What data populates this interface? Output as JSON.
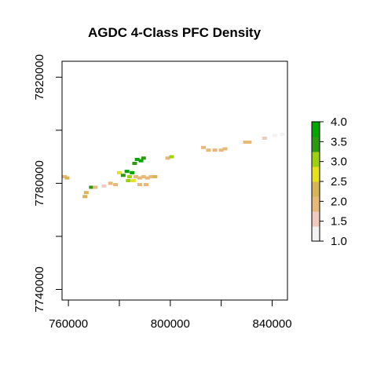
{
  "chart_data": {
    "type": "heatmap",
    "title": "AGDC 4-Class PFC Density",
    "xlabel": "",
    "ylabel": "",
    "xlim": [
      757500,
      846000
    ],
    "ylim": [
      7736000,
      7826000
    ],
    "x_ticks": [
      {
        "value": 760000,
        "label": "760000"
      },
      {
        "value": 780000,
        "label": ""
      },
      {
        "value": 800000,
        "label": "800000"
      },
      {
        "value": 820000,
        "label": ""
      },
      {
        "value": 840000,
        "label": "840000"
      }
    ],
    "y_ticks": [
      {
        "value": 7740000,
        "label": "7740000"
      },
      {
        "value": 7760000,
        "label": ""
      },
      {
        "value": 7780000,
        "label": "7780000"
      },
      {
        "value": 7800000,
        "label": ""
      },
      {
        "value": 7820000,
        "label": "7820000"
      }
    ],
    "legend": {
      "placement": "right",
      "range": [
        1.0,
        4.0
      ],
      "ticks": [
        {
          "value": 1.0,
          "label": "1.0"
        },
        {
          "value": 1.5,
          "label": "1.5"
        },
        {
          "value": 2.0,
          "label": "2.0"
        },
        {
          "value": 2.5,
          "label": "2.5"
        },
        {
          "value": 3.0,
          "label": "3.0"
        },
        {
          "value": 3.5,
          "label": "3.5"
        },
        {
          "value": 4.0,
          "label": "4.0"
        }
      ],
      "colors": [
        "#f2f2f2",
        "#f0c9c0",
        "#e8b878",
        "#d8b456",
        "#e6e11a",
        "#9fd00e",
        "#2a9a12",
        "#00a600"
      ]
    },
    "cells": [
      {
        "x": 758500,
        "y": 7782500,
        "value": 2.0
      },
      {
        "x": 759500,
        "y": 7782000,
        "value": 2.2
      },
      {
        "x": 767000,
        "y": 7776500,
        "value": 2.3
      },
      {
        "x": 766500,
        "y": 7775000,
        "value": 2.4
      },
      {
        "x": 769000,
        "y": 7778500,
        "value": 3.6
      },
      {
        "x": 770500,
        "y": 7778500,
        "value": 2.0
      },
      {
        "x": 774000,
        "y": 7779000,
        "value": 1.6
      },
      {
        "x": 776500,
        "y": 7780000,
        "value": 2.0
      },
      {
        "x": 778500,
        "y": 7779500,
        "value": 1.8
      },
      {
        "x": 780000,
        "y": 7784000,
        "value": 2.6
      },
      {
        "x": 781500,
        "y": 7783000,
        "value": 3.4
      },
      {
        "x": 783000,
        "y": 7784500,
        "value": 3.8
      },
      {
        "x": 784000,
        "y": 7782500,
        "value": 3.2
      },
      {
        "x": 785000,
        "y": 7784000,
        "value": 3.9
      },
      {
        "x": 786000,
        "y": 7787500,
        "value": 3.5
      },
      {
        "x": 787000,
        "y": 7789000,
        "value": 4.0
      },
      {
        "x": 788500,
        "y": 7788500,
        "value": 3.7
      },
      {
        "x": 789500,
        "y": 7789500,
        "value": 3.3
      },
      {
        "x": 786500,
        "y": 7782500,
        "value": 2.0
      },
      {
        "x": 788000,
        "y": 7782000,
        "value": 2.1
      },
      {
        "x": 789500,
        "y": 7782500,
        "value": 2.0
      },
      {
        "x": 791000,
        "y": 7782000,
        "value": 2.1
      },
      {
        "x": 792500,
        "y": 7782500,
        "value": 2.0
      },
      {
        "x": 794000,
        "y": 7782500,
        "value": 2.2
      },
      {
        "x": 783500,
        "y": 7781000,
        "value": 3.0
      },
      {
        "x": 785500,
        "y": 7781000,
        "value": 2.6
      },
      {
        "x": 788000,
        "y": 7779500,
        "value": 2.0
      },
      {
        "x": 790500,
        "y": 7779500,
        "value": 1.9
      },
      {
        "x": 799000,
        "y": 7789500,
        "value": 2.1
      },
      {
        "x": 800500,
        "y": 7790000,
        "value": 3.0
      },
      {
        "x": 813000,
        "y": 7793500,
        "value": 2.0
      },
      {
        "x": 815000,
        "y": 7792500,
        "value": 2.1
      },
      {
        "x": 817500,
        "y": 7792500,
        "value": 2.0
      },
      {
        "x": 820000,
        "y": 7792500,
        "value": 2.1
      },
      {
        "x": 821500,
        "y": 7793000,
        "value": 2.0
      },
      {
        "x": 829500,
        "y": 7795500,
        "value": 2.0
      },
      {
        "x": 831000,
        "y": 7795500,
        "value": 1.9
      },
      {
        "x": 837000,
        "y": 7797000,
        "value": 1.4
      },
      {
        "x": 841000,
        "y": 7798000,
        "value": 1.3
      },
      {
        "x": 844000,
        "y": 7798500,
        "value": 1.3
      }
    ]
  }
}
